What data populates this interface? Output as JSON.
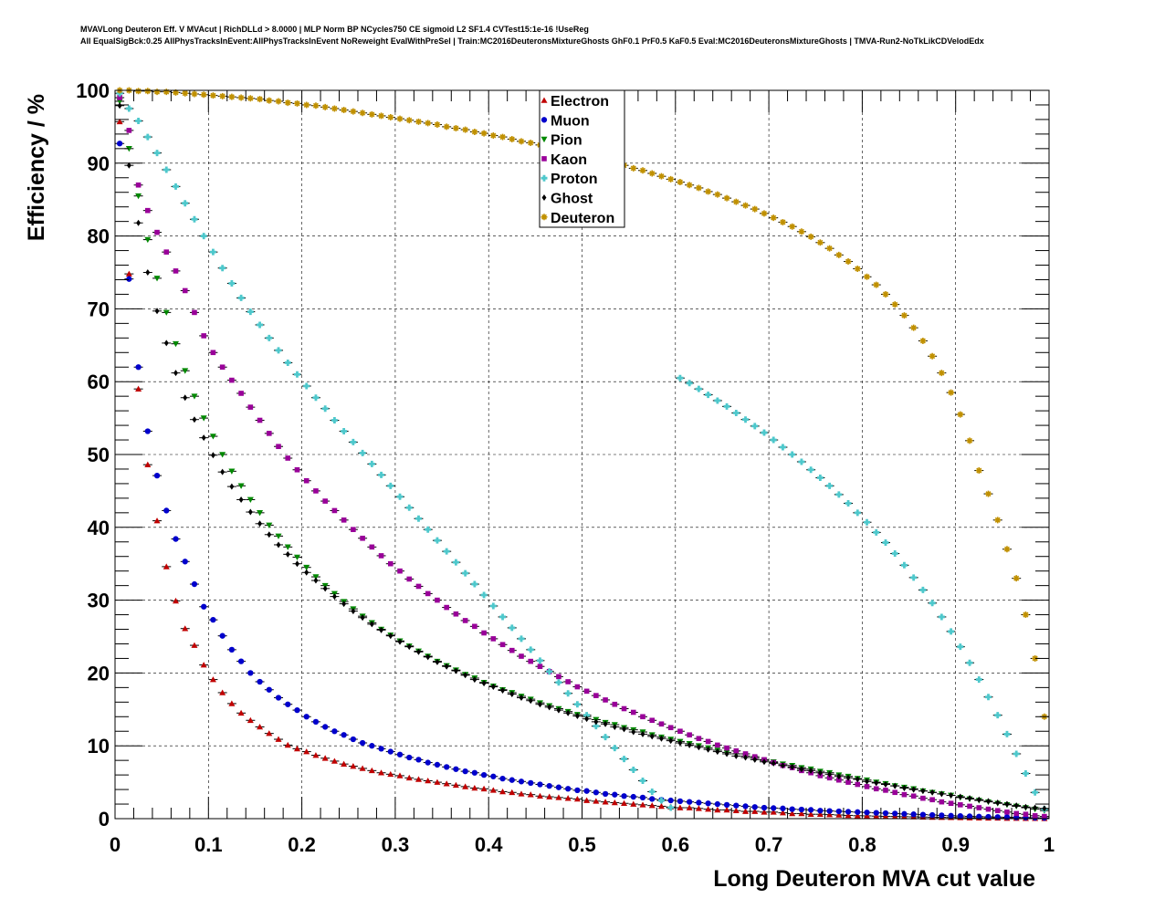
{
  "header": {
    "title_line1": "MVAVLong Deuteron Eff. V MVAcut | RichDLLd > 8.0000 | MLP Norm BP NCycles750 CE sigmoid L2 SF1.4 CVTest15:1e-16 !UseReg",
    "title_line2": "All EqualSigBck:0.25 AllPhysTracksInEvent:AllPhysTracksInEvent NoReweight EvalWithPreSel | Train:MC2016DeuteronsMixtureGhosts GhF0.1 PrF0.5 KaF0.5 Eval:MC2016DeuteronsMixtureGhosts | TMVA-Run2-NoTkLikCDVelodEdx"
  },
  "chart_data": {
    "type": "scatter",
    "xlabel": "Long Deuteron MVA cut value",
    "ylabel": "Efficiency / %",
    "xlim": [
      0,
      1
    ],
    "ylim": [
      0,
      100
    ],
    "xticks": [
      "0",
      "0.1",
      "0.2",
      "0.3",
      "0.4",
      "0.5",
      "0.6",
      "0.7",
      "0.8",
      "0.9",
      "1"
    ],
    "yticks": [
      "0",
      "10",
      "20",
      "30",
      "40",
      "50",
      "60",
      "70",
      "80",
      "90",
      "100"
    ],
    "grid": true,
    "legend_position": "top-center",
    "x": [
      0.005,
      0.015,
      0.025,
      0.035,
      0.045,
      0.055,
      0.065,
      0.075,
      0.085,
      0.095,
      0.105,
      0.115,
      0.125,
      0.135,
      0.145,
      0.155,
      0.165,
      0.175,
      0.185,
      0.195,
      0.205,
      0.215,
      0.225,
      0.235,
      0.245,
      0.255,
      0.265,
      0.275,
      0.285,
      0.295,
      0.305,
      0.315,
      0.325,
      0.335,
      0.345,
      0.355,
      0.365,
      0.375,
      0.385,
      0.395,
      0.405,
      0.415,
      0.425,
      0.435,
      0.445,
      0.455,
      0.465,
      0.475,
      0.485,
      0.495,
      0.505,
      0.515,
      0.525,
      0.535,
      0.545,
      0.555,
      0.565,
      0.575,
      0.585,
      0.595,
      0.605,
      0.615,
      0.625,
      0.635,
      0.645,
      0.655,
      0.665,
      0.675,
      0.685,
      0.695,
      0.705,
      0.715,
      0.725,
      0.735,
      0.745,
      0.755,
      0.765,
      0.775,
      0.785,
      0.795,
      0.805,
      0.815,
      0.825,
      0.835,
      0.845,
      0.855,
      0.865,
      0.875,
      0.885,
      0.895,
      0.905,
      0.915,
      0.925,
      0.935,
      0.945,
      0.955,
      0.965,
      0.975,
      0.985,
      0.995
    ],
    "series": [
      {
        "name": "Electron",
        "color": "#c00000",
        "marker": "triangle-up",
        "values": [
          95.7,
          74.8,
          59.0,
          48.6,
          40.9,
          34.6,
          29.9,
          26.1,
          23.8,
          21.1,
          19.1,
          17.3,
          15.8,
          14.5,
          13.5,
          12.6,
          11.7,
          10.9,
          10.1,
          9.6,
          9.2,
          8.7,
          8.3,
          7.9,
          7.5,
          7.2,
          6.9,
          6.6,
          6.3,
          6.1,
          5.9,
          5.6,
          5.4,
          5.2,
          5.0,
          4.8,
          4.6,
          4.4,
          4.2,
          4.1,
          3.9,
          3.7,
          3.6,
          3.4,
          3.3,
          3.1,
          3.0,
          2.9,
          2.8,
          2.7,
          2.5,
          2.4,
          2.3,
          2.2,
          2.1,
          2.0,
          1.9,
          1.8,
          1.7,
          1.6,
          1.5,
          1.5,
          1.4,
          1.3,
          1.2,
          1.2,
          1.1,
          1.0,
          1.0,
          0.9,
          0.9,
          0.8,
          0.7,
          0.7,
          0.6,
          0.6,
          0.55,
          0.5,
          0.45,
          0.4,
          0.38,
          0.35,
          0.32,
          0.3,
          0.27,
          0.25,
          0.22,
          0.2,
          0.18,
          0.16,
          0.14,
          0.12,
          0.1,
          0.09,
          0.08,
          0.06,
          0.05,
          0.04,
          0.03,
          0.02
        ]
      },
      {
        "name": "Muon",
        "color": "#0000cc",
        "marker": "circle",
        "values": [
          92.7,
          74.1,
          62.0,
          53.2,
          47.1,
          42.3,
          38.4,
          35.3,
          32.2,
          29.1,
          27.3,
          25.1,
          23.2,
          21.6,
          20.0,
          18.8,
          17.7,
          16.6,
          15.7,
          14.9,
          14.0,
          13.3,
          12.6,
          12.0,
          11.5,
          10.9,
          10.4,
          10.0,
          9.6,
          9.2,
          8.8,
          8.4,
          8.1,
          7.7,
          7.4,
          7.1,
          6.8,
          6.5,
          6.3,
          6.0,
          5.8,
          5.5,
          5.3,
          5.1,
          4.9,
          4.7,
          4.5,
          4.3,
          4.1,
          3.9,
          3.8,
          3.6,
          3.4,
          3.3,
          3.1,
          3.0,
          2.9,
          2.7,
          2.6,
          2.5,
          2.4,
          2.3,
          2.2,
          2.1,
          2.0,
          1.9,
          1.8,
          1.7,
          1.6,
          1.5,
          1.45,
          1.4,
          1.3,
          1.25,
          1.2,
          1.1,
          1.05,
          1.0,
          0.95,
          0.9,
          0.85,
          0.8,
          0.75,
          0.7,
          0.65,
          0.6,
          0.55,
          0.5,
          0.45,
          0.4,
          0.36,
          0.32,
          0.28,
          0.25,
          0.22,
          0.2,
          0.17,
          0.15,
          0.12,
          0.1
        ]
      },
      {
        "name": "Pion",
        "color": "#008800",
        "marker": "triangle-down",
        "values": [
          98.5,
          92.0,
          85.5,
          79.5,
          74.2,
          69.5,
          65.2,
          61.5,
          58.0,
          55.0,
          52.5,
          50.0,
          47.7,
          45.7,
          43.8,
          42.0,
          40.3,
          38.8,
          37.3,
          35.9,
          34.5,
          33.2,
          32.0,
          30.9,
          29.8,
          28.8,
          27.8,
          26.9,
          26.0,
          25.2,
          24.4,
          23.7,
          23.0,
          22.3,
          21.6,
          21.0,
          20.4,
          19.8,
          19.3,
          18.7,
          18.2,
          17.7,
          17.3,
          16.8,
          16.4,
          15.9,
          15.5,
          15.1,
          14.7,
          14.3,
          14.0,
          13.6,
          13.2,
          12.9,
          12.5,
          12.2,
          11.9,
          11.5,
          11.2,
          10.9,
          10.6,
          10.3,
          10.0,
          9.7,
          9.4,
          9.1,
          8.9,
          8.6,
          8.3,
          8.0,
          7.8,
          7.5,
          7.3,
          7.0,
          6.8,
          6.5,
          6.3,
          6.0,
          5.8,
          5.5,
          5.3,
          5.0,
          4.8,
          4.5,
          4.3,
          4.1,
          3.8,
          3.6,
          3.4,
          3.2,
          2.9,
          2.7,
          2.5,
          2.3,
          2.1,
          1.9,
          1.7,
          1.5,
          1.3,
          1.1
        ]
      },
      {
        "name": "Kaon",
        "color": "#990099",
        "marker": "square",
        "values": [
          99.0,
          94.5,
          87.0,
          83.5,
          80.5,
          77.8,
          75.2,
          72.5,
          69.5,
          66.3,
          64.0,
          62.0,
          60.2,
          58.4,
          56.5,
          54.7,
          52.9,
          51.1,
          49.5,
          47.9,
          46.4,
          45.0,
          43.6,
          42.3,
          41.0,
          39.7,
          38.5,
          37.3,
          36.1,
          35.0,
          34.0,
          32.9,
          31.9,
          30.9,
          30.0,
          29.0,
          28.1,
          27.2,
          26.4,
          25.5,
          24.7,
          23.9,
          23.1,
          22.3,
          21.6,
          20.9,
          20.2,
          19.5,
          18.8,
          18.1,
          17.5,
          16.9,
          16.3,
          15.7,
          15.1,
          14.6,
          14.0,
          13.5,
          13.0,
          12.5,
          12.0,
          11.5,
          11.0,
          10.6,
          10.1,
          9.7,
          9.3,
          8.9,
          8.5,
          8.1,
          7.7,
          7.3,
          7.0,
          6.6,
          6.3,
          5.9,
          5.6,
          5.3,
          5.0,
          4.7,
          4.4,
          4.1,
          3.9,
          3.6,
          3.3,
          3.1,
          2.8,
          2.6,
          2.3,
          2.1,
          1.9,
          1.7,
          1.5,
          1.3,
          1.1,
          0.9,
          0.7,
          0.6,
          0.4,
          0.3
        ]
      },
      {
        "name": "Proton",
        "color": "#4ec8cc",
        "marker": "cross",
        "values": [
          99.6,
          97.5,
          95.8,
          93.6,
          91.4,
          89.1,
          86.8,
          84.5,
          82.3,
          80.0,
          77.8,
          75.6,
          73.5,
          71.5,
          69.6,
          67.8,
          66.0,
          64.3,
          62.6,
          61.0,
          59.4,
          57.8,
          56.3,
          54.7,
          53.2,
          51.7,
          50.2,
          48.7,
          47.2,
          45.7,
          44.2,
          42.7,
          41.2,
          39.7,
          38.2,
          36.7,
          35.2,
          33.7,
          32.2,
          30.7,
          29.2,
          27.7,
          26.2,
          24.7,
          23.2,
          21.7,
          20.2,
          18.7,
          17.2,
          15.7,
          14.2,
          12.7,
          11.2,
          9.7,
          8.2,
          6.7,
          5.2,
          3.7,
          2.5,
          1.5,
          60.5,
          59.8,
          59.0,
          58.2,
          57.4,
          56.6,
          55.7,
          54.8,
          53.9,
          53.0,
          52.0,
          51.0,
          50.0,
          49.0,
          47.9,
          46.8,
          45.7,
          44.5,
          43.3,
          42.0,
          40.7,
          39.3,
          37.9,
          36.4,
          34.8,
          33.1,
          31.4,
          29.6,
          27.7,
          25.7,
          23.6,
          21.4,
          19.1,
          16.7,
          14.2,
          11.6,
          8.9,
          6.2,
          3.6,
          1.3
        ]
      },
      {
        "name": "Ghost",
        "color": "#000000",
        "marker": "diamond",
        "values": [
          97.9,
          89.7,
          81.8,
          75.0,
          69.7,
          65.3,
          61.2,
          57.8,
          54.8,
          52.3,
          49.9,
          47.6,
          45.6,
          43.8,
          42.1,
          40.5,
          39.0,
          37.6,
          36.3,
          35.0,
          33.8,
          32.7,
          31.6,
          30.5,
          29.5,
          28.5,
          27.6,
          26.7,
          25.9,
          25.1,
          24.3,
          23.6,
          22.9,
          22.2,
          21.5,
          20.9,
          20.3,
          19.7,
          19.1,
          18.6,
          18.1,
          17.6,
          17.1,
          16.6,
          16.2,
          15.7,
          15.3,
          14.9,
          14.5,
          14.1,
          13.7,
          13.3,
          13.0,
          12.6,
          12.3,
          11.9,
          11.6,
          11.3,
          11.0,
          10.7,
          10.4,
          10.1,
          9.8,
          9.5,
          9.2,
          8.9,
          8.6,
          8.4,
          8.1,
          7.8,
          7.6,
          7.3,
          7.1,
          6.8,
          6.6,
          6.3,
          6.1,
          5.8,
          5.6,
          5.4,
          5.1,
          4.9,
          4.7,
          4.5,
          4.2,
          4.0,
          3.8,
          3.6,
          3.4,
          3.2,
          3.0,
          2.8,
          2.6,
          2.4,
          2.2,
          2.0,
          1.8,
          1.6,
          1.5,
          1.4
        ]
      },
      {
        "name": "Deuteron",
        "color": "#c09000",
        "marker": "star",
        "values": [
          100.0,
          100.0,
          99.9,
          99.9,
          99.8,
          99.8,
          99.7,
          99.6,
          99.5,
          99.4,
          99.3,
          99.2,
          99.1,
          99.0,
          98.9,
          98.8,
          98.6,
          98.5,
          98.3,
          98.2,
          98.0,
          97.9,
          97.7,
          97.5,
          97.3,
          97.1,
          96.9,
          96.7,
          96.5,
          96.3,
          96.1,
          95.9,
          95.7,
          95.5,
          95.3,
          95.0,
          94.8,
          94.6,
          94.3,
          94.1,
          93.8,
          93.6,
          93.3,
          93.0,
          92.8,
          92.5,
          92.2,
          91.9,
          91.6,
          91.3,
          91.0,
          90.7,
          90.4,
          90.0,
          89.7,
          89.3,
          89.0,
          88.6,
          88.2,
          87.8,
          87.4,
          87.0,
          86.6,
          86.1,
          85.7,
          85.2,
          84.7,
          84.2,
          83.7,
          83.1,
          82.5,
          81.9,
          81.3,
          80.6,
          79.9,
          79.1,
          78.3,
          77.4,
          76.5,
          75.5,
          74.4,
          73.3,
          72.0,
          70.6,
          69.1,
          67.4,
          65.6,
          63.5,
          61.2,
          58.5,
          55.5,
          51.9,
          47.8,
          44.6,
          41.0,
          37.0,
          33.0,
          28.0,
          22.0,
          14.0
        ]
      }
    ]
  }
}
